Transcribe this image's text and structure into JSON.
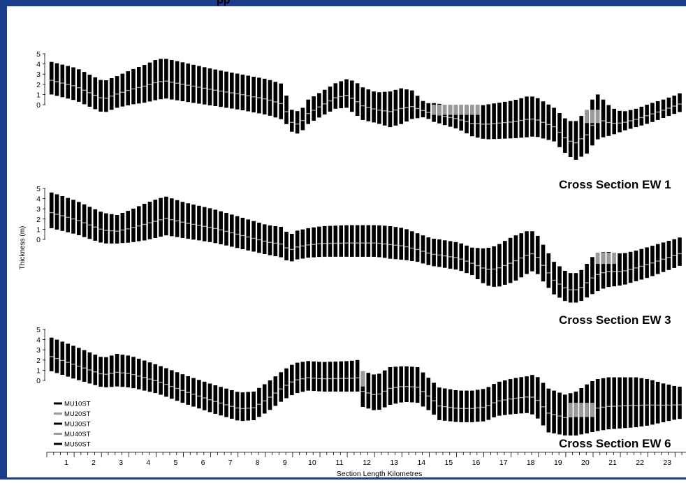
{
  "header": {
    "clipped_text": "pp"
  },
  "axis": {
    "ylabel": "Thickness (m)",
    "xlabel": "Section Length Kilometres",
    "y_ticks": [
      "5",
      "4",
      "3",
      "2",
      "1",
      "0"
    ],
    "x_ticks": [
      "1",
      "2",
      "3",
      "4",
      "5",
      "6",
      "7",
      "8",
      "9",
      "10",
      "11",
      "12",
      "13",
      "14",
      "15",
      "16",
      "17",
      "18",
      "19",
      "20",
      "21",
      "22",
      "23"
    ]
  },
  "legend": {
    "items": [
      {
        "label": "MU10ST",
        "color": "#000000"
      },
      {
        "label": "MU20ST",
        "color": "#9a9a9a"
      },
      {
        "label": "MU30ST",
        "color": "#000000"
      },
      {
        "label": "MU40ST",
        "color": "#9a9a9a"
      },
      {
        "label": "MU50ST",
        "color": "#000000"
      }
    ]
  },
  "colors": {
    "frame": "#1c3c8c",
    "dark": "#000000",
    "grey": "#9a9a9a"
  },
  "chart_data": [
    {
      "type": "bar",
      "title": "Cross Section EW 1",
      "xlabel": "Section Length Kilometres",
      "ylabel": "Thickness (m)",
      "xlim": [
        0,
        23.6
      ],
      "ylim": [
        -4.5,
        5
      ],
      "series_names": [
        "MU10ST",
        "MU20ST",
        "MU30ST",
        "MU40ST",
        "MU50ST"
      ],
      "profile_km": [
        0.1,
        1,
        2,
        2.5,
        3,
        3.5,
        4,
        4.3,
        5,
        6,
        7,
        8,
        8.6,
        8.8,
        9,
        9.3,
        9.5,
        10,
        10.5,
        10.9,
        11.2,
        11.5,
        12,
        12.5,
        12.9,
        13.3,
        13.8,
        14,
        14.5,
        15,
        15.5,
        16,
        17,
        17.5,
        17.8,
        18.5,
        19,
        19.3,
        19.7,
        19.9,
        20.1,
        20.3,
        20.6,
        21,
        21.5,
        22,
        22.5,
        23,
        23.6
      ],
      "top_m": [
        4.2,
        3.6,
        2.3,
        2.8,
        3.4,
        3.9,
        4.5,
        4.5,
        4.1,
        3.5,
        3.0,
        2.5,
        2.0,
        -0.2,
        -0.8,
        -0.3,
        0.5,
        1.3,
        2.1,
        2.5,
        2.3,
        1.7,
        1.2,
        1.3,
        1.6,
        1.4,
        0.1,
        0.2,
        0.0,
        -0.1,
        -0.2,
        0.0,
        0.4,
        0.8,
        0.8,
        -0.3,
        -1.6,
        -1.6,
        -0.6,
        0.5,
        1.0,
        0.5,
        -0.3,
        -0.7,
        -0.4,
        0.1,
        0.5,
        1.0,
        1.7
      ],
      "bottom_m": [
        1.0,
        0.4,
        -0.8,
        -0.3,
        0.0,
        0.2,
        0.5,
        0.6,
        0.3,
        -0.1,
        -0.5,
        -1.0,
        -1.5,
        -2.3,
        -3.0,
        -2.5,
        -1.9,
        -1.1,
        -0.4,
        -0.3,
        -0.9,
        -1.5,
        -1.8,
        -2.2,
        -1.9,
        -1.4,
        -1.2,
        -1.6,
        -2.0,
        -2.4,
        -3.1,
        -3.4,
        -3.3,
        -3.2,
        -3.1,
        -3.6,
        -5.0,
        -5.4,
        -4.8,
        -4.0,
        -3.4,
        -3.2,
        -3.0,
        -2.6,
        -2.2,
        -1.8,
        -1.3,
        -0.8,
        -0.3
      ],
      "grey_band_m": [
        {
          "km": [
            14.0,
            15.8
          ],
          "from": 0.0,
          "to": -1.0
        },
        {
          "km": [
            19.6,
            20.2
          ],
          "from": -0.5,
          "to": -1.8
        }
      ]
    },
    {
      "type": "bar",
      "title": "Cross Section EW 3",
      "xlabel": "Section Length Kilometres",
      "ylabel": "Thickness (m)",
      "xlim": [
        0,
        23.6
      ],
      "ylim": [
        -4.5,
        5
      ],
      "series_names": [
        "MU10ST",
        "MU20ST",
        "MU30ST",
        "MU40ST",
        "MU50ST"
      ],
      "profile_km": [
        0.1,
        1,
        2,
        2.5,
        3,
        3.5,
        4,
        4.3,
        5,
        6,
        7,
        8,
        8.6,
        8.8,
        9,
        9.5,
        10,
        11,
        12,
        12.5,
        13,
        13.5,
        14,
        14.3,
        15,
        15.5,
        16,
        16.4,
        17,
        17.5,
        17.8,
        18,
        18.5,
        19,
        19.4,
        19.7,
        20,
        20.4,
        21,
        21.5,
        22,
        22.5,
        23,
        23.6
      ],
      "top_m": [
        4.6,
        3.8,
        2.6,
        2.4,
        2.9,
        3.5,
        4.0,
        4.2,
        3.6,
        3.0,
        2.2,
        1.4,
        1.2,
        0.3,
        0.8,
        1.1,
        1.3,
        1.4,
        1.4,
        1.3,
        1.1,
        0.6,
        0.1,
        0.0,
        -0.3,
        -0.8,
        -0.9,
        -0.6,
        0.3,
        0.8,
        0.8,
        -0.1,
        -2.2,
        -3.3,
        -3.3,
        -2.4,
        -1.4,
        -1.2,
        -1.4,
        -1.1,
        -0.7,
        -0.3,
        0.1,
        0.6
      ],
      "bottom_m": [
        1.1,
        0.5,
        -0.4,
        -0.4,
        -0.3,
        -0.1,
        0.2,
        0.4,
        0.1,
        -0.3,
        -0.9,
        -1.5,
        -1.8,
        -2.3,
        -2.0,
        -1.8,
        -1.7,
        -1.7,
        -1.7,
        -1.9,
        -2.0,
        -2.2,
        -2.6,
        -2.7,
        -3.0,
        -3.5,
        -4.5,
        -4.7,
        -4.2,
        -3.4,
        -3.0,
        -3.8,
        -5.4,
        -6.2,
        -6.2,
        -5.7,
        -5.2,
        -4.7,
        -4.5,
        -4.1,
        -3.7,
        -3.2,
        -2.7,
        -2.1
      ],
      "grey_band_m": [
        {
          "km": [
            19.9,
            20.7
          ],
          "from": -1.3,
          "to": -2.4
        }
      ]
    },
    {
      "type": "bar",
      "title": "Cross Section EW 6",
      "xlabel": "Section Length Kilometres",
      "ylabel": "Thickness (m)",
      "xlim": [
        0,
        23.6
      ],
      "ylim": [
        -4.5,
        5
      ],
      "series_names": [
        "MU10ST",
        "MU20ST",
        "MU30ST",
        "MU40ST",
        "MU50ST"
      ],
      "profile_km": [
        0.1,
        1,
        2,
        2.5,
        3,
        4,
        5,
        6,
        7,
        7.5,
        8,
        8.6,
        9,
        9.5,
        10,
        11,
        11.3,
        11.5,
        12,
        12.5,
        13,
        13.5,
        14,
        14.3,
        15,
        15.5,
        16,
        16.4,
        17,
        17.5,
        17.8,
        18.3,
        18.9,
        19.3,
        19.7,
        20,
        20.5,
        21,
        21.5,
        22,
        22.5,
        23,
        23.6
      ],
      "top_m": [
        4.2,
        3.3,
        2.2,
        2.6,
        2.4,
        1.5,
        0.5,
        -0.4,
        -1.2,
        -1.1,
        -0.2,
        1.0,
        1.7,
        1.9,
        1.8,
        1.9,
        2.0,
        0.9,
        0.5,
        1.3,
        1.4,
        1.3,
        0.0,
        -0.7,
        -1.0,
        -1.0,
        -0.8,
        -0.2,
        0.2,
        0.4,
        0.6,
        -0.8,
        -1.4,
        -1.1,
        -0.4,
        0.1,
        0.3,
        0.3,
        0.3,
        0.1,
        -0.3,
        -0.6,
        -0.7
      ],
      "bottom_m": [
        0.9,
        0.1,
        -0.7,
        -0.6,
        -0.7,
        -1.3,
        -2.3,
        -3.2,
        -4.0,
        -3.9,
        -3.1,
        -1.9,
        -1.3,
        -1.0,
        -1.1,
        -1.1,
        -1.1,
        -2.6,
        -3.0,
        -2.4,
        -2.1,
        -2.2,
        -3.1,
        -3.9,
        -4.1,
        -4.1,
        -4.0,
        -3.5,
        -3.3,
        -3.2,
        -3.4,
        -5.1,
        -5.4,
        -5.4,
        -5.2,
        -5.0,
        -4.8,
        -4.7,
        -4.6,
        -4.4,
        -4.1,
        -3.8,
        -3.7
      ],
      "grey_band_m": [
        {
          "km": [
            18.9,
            20.0
          ],
          "from": -2.2,
          "to": -3.6
        },
        {
          "km": [
            11.3,
            11.6
          ],
          "from": 0.9,
          "to": -0.6
        }
      ]
    }
  ]
}
